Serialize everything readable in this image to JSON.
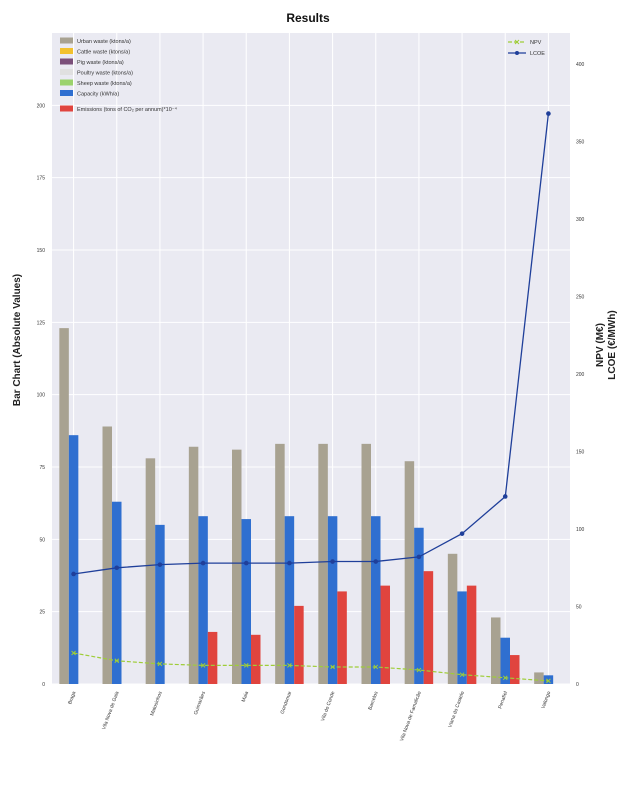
{
  "chart_data": {
    "type": "bar",
    "title": "Results",
    "ylabel_left": "Bar Chart (Absolute Values)",
    "ylabel_right_1": "NPV (M€)",
    "ylabel_right_2": "LCOE (€/MWh)",
    "ylim_left": [
      0,
      225
    ],
    "ylim_right": [
      0,
      420
    ],
    "yticks_left": [
      0,
      25,
      50,
      75,
      100,
      125,
      150,
      175,
      200
    ],
    "yticks_right": [
      0,
      50,
      100,
      150,
      200,
      250,
      300,
      350,
      400
    ],
    "grid": true,
    "legend_bars_position": "top-left",
    "legend_lines_position": "top-right",
    "categories": [
      "Braga",
      "Vila Nova de Gaia",
      "Matosinhos",
      "Guimarães",
      "Maia",
      "Gondomar",
      "Vila do Conde",
      "Barcelos",
      "Vila Nova de Famalicão",
      "Viana do Castelo",
      "Penafiel",
      "Valongo"
    ],
    "series": [
      {
        "name": "Urban waste (ktons/a)",
        "color": "#a8a291",
        "values": [
          123,
          89,
          78,
          82,
          81,
          83,
          83,
          83,
          77,
          45,
          23,
          4
        ]
      },
      {
        "name": "Cattle waste (ktons/a)",
        "color": "#f2c12e",
        "values": [
          0,
          0,
          0,
          0,
          0,
          0,
          0,
          0,
          0,
          0,
          0,
          0
        ]
      },
      {
        "name": "Pig waste (ktons/a)",
        "color": "#7b4f7a",
        "values": [
          0,
          0,
          0,
          0,
          0,
          0,
          0,
          0,
          0,
          0,
          0,
          0
        ]
      },
      {
        "name": "Poultry waste (ktons/a)",
        "color": "#e0e0e0",
        "values": [
          0,
          0,
          0,
          0,
          0,
          0,
          0,
          0,
          0,
          0,
          0,
          0
        ]
      },
      {
        "name": "Sheep waste (ktons/a)",
        "color": "#9bd26c",
        "values": [
          0,
          0,
          0,
          0,
          0,
          0,
          0,
          0,
          0,
          0,
          0,
          0
        ]
      },
      {
        "name": "Capacity (kWh/a)",
        "color": "#2f6fd0",
        "values": [
          86,
          63,
          55,
          58,
          57,
          58,
          58,
          58,
          54,
          32,
          16,
          3
        ]
      },
      {
        "name": "Emissions (tons of CO₂ per annum)*10⁻⁴",
        "color": "#e0443e",
        "values": [
          0,
          0,
          0,
          18,
          17,
          27,
          32,
          34,
          39,
          34,
          10,
          0
        ]
      }
    ],
    "lines": [
      {
        "name": "NPV",
        "color": "#9fcd38",
        "marker": "x",
        "values": [
          20,
          15,
          13,
          12,
          12,
          12,
          11,
          11,
          9,
          6,
          4,
          2
        ]
      },
      {
        "name": "LCOE",
        "color": "#1f3f9a",
        "marker": "dot",
        "values": [
          71,
          75,
          77,
          78,
          78,
          78,
          79,
          79,
          82,
          97,
          121,
          368
        ]
      }
    ]
  }
}
